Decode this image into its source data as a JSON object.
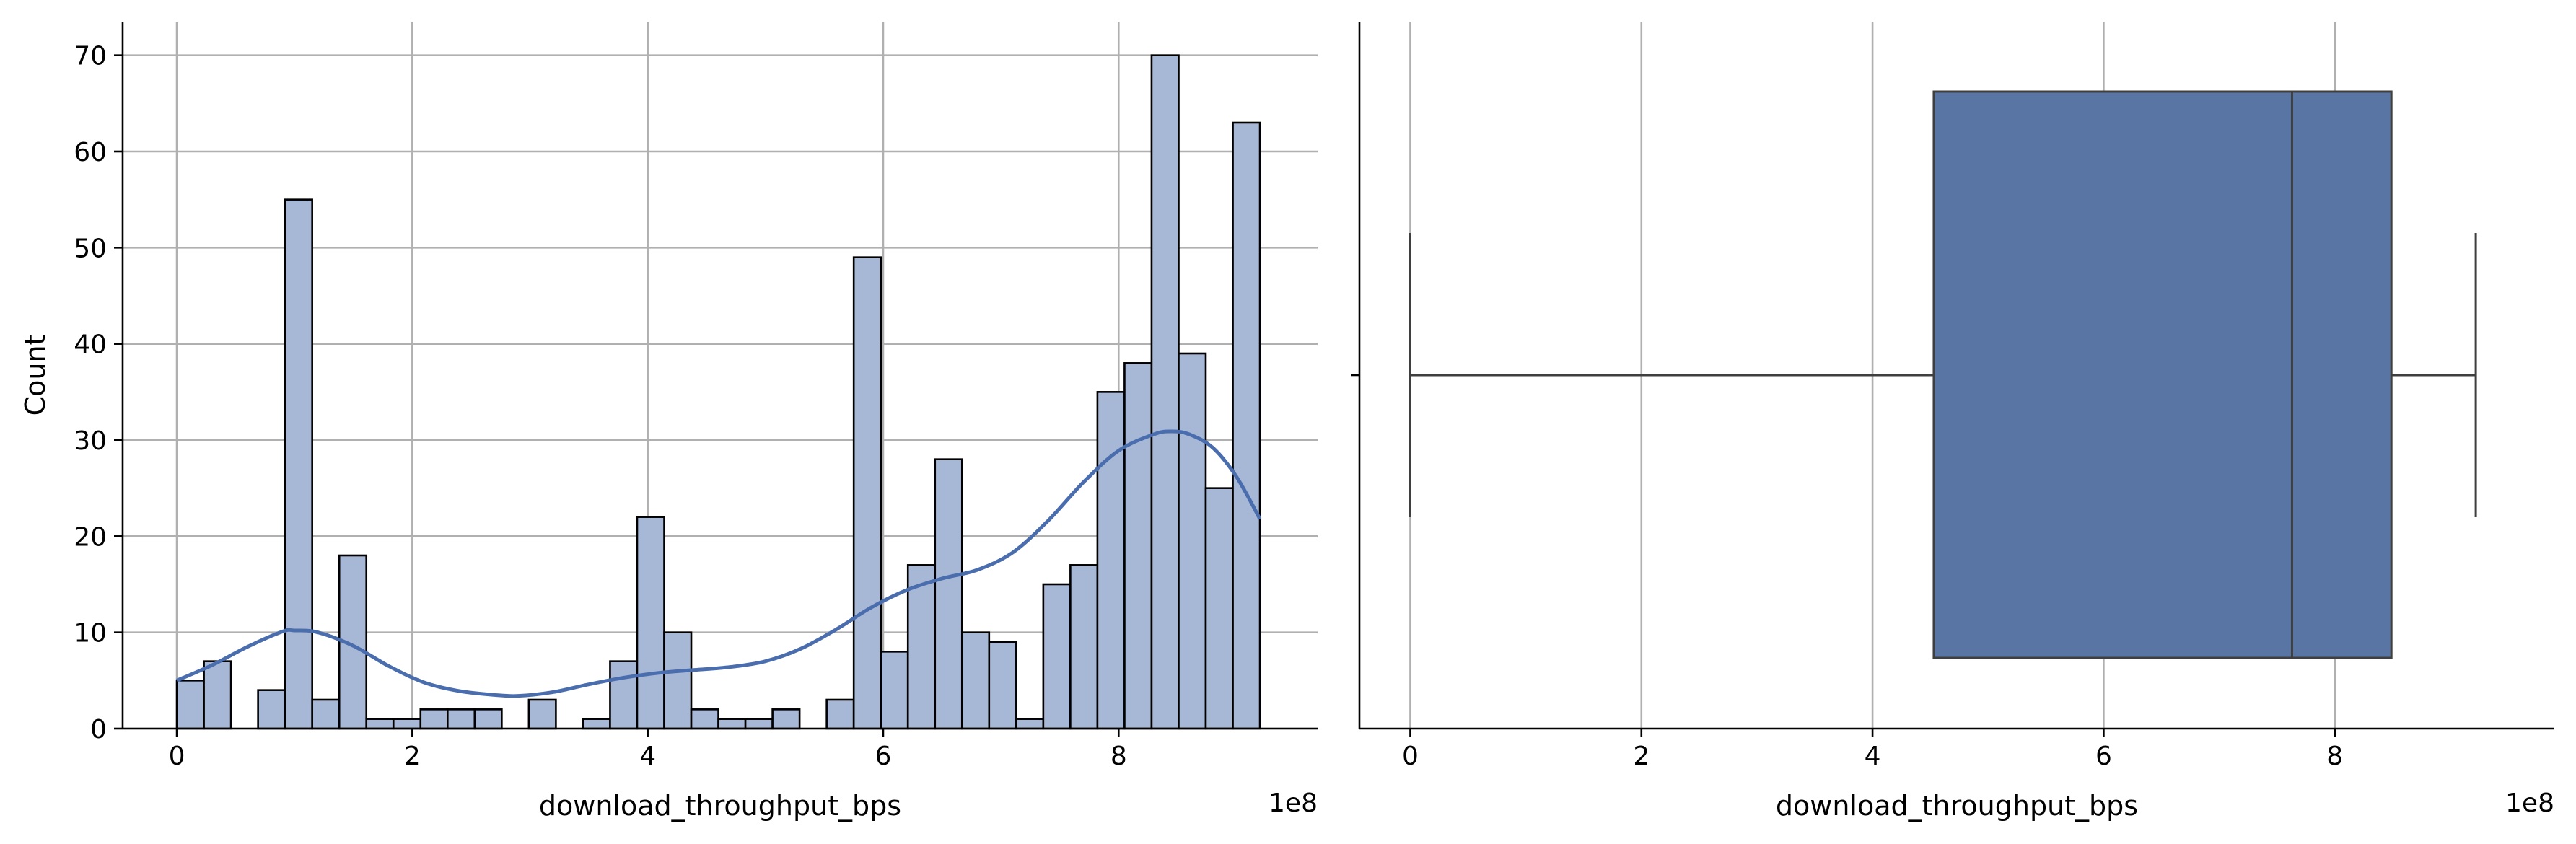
{
  "chart_data": [
    {
      "type": "histogram",
      "xlabel": "download_throughput_bps",
      "ylabel": "Count",
      "x_offset_label": "1e8",
      "xlim": [
        -0.46,
        9.69
      ],
      "ylim": [
        0,
        73.5
      ],
      "xticks": [
        0,
        2,
        4,
        6,
        8
      ],
      "yticks": [
        0,
        10,
        20,
        30,
        40,
        50,
        60,
        70
      ],
      "grid": true,
      "bar_color": "#a7b7d6",
      "bar_edge_color": "#000000",
      "kde_color": "#4a6dae",
      "bins": [
        {
          "x0": 0.0,
          "x1": 0.23,
          "count": 5
        },
        {
          "x0": 0.23,
          "x1": 0.46,
          "count": 7
        },
        {
          "x0": 0.46,
          "x1": 0.69,
          "count": 0
        },
        {
          "x0": 0.69,
          "x1": 0.92,
          "count": 4
        },
        {
          "x0": 0.92,
          "x1": 1.15,
          "count": 55
        },
        {
          "x0": 1.15,
          "x1": 1.38,
          "count": 3
        },
        {
          "x0": 1.38,
          "x1": 1.61,
          "count": 18
        },
        {
          "x0": 1.61,
          "x1": 1.84,
          "count": 1
        },
        {
          "x0": 1.84,
          "x1": 2.07,
          "count": 1
        },
        {
          "x0": 2.07,
          "x1": 2.3,
          "count": 2
        },
        {
          "x0": 2.3,
          "x1": 2.53,
          "count": 2
        },
        {
          "x0": 2.53,
          "x1": 2.76,
          "count": 2
        },
        {
          "x0": 2.76,
          "x1": 2.99,
          "count": 0
        },
        {
          "x0": 2.99,
          "x1": 3.22,
          "count": 3
        },
        {
          "x0": 3.22,
          "x1": 3.45,
          "count": 0
        },
        {
          "x0": 3.45,
          "x1": 3.68,
          "count": 1
        },
        {
          "x0": 3.68,
          "x1": 3.91,
          "count": 7
        },
        {
          "x0": 3.91,
          "x1": 4.14,
          "count": 22
        },
        {
          "x0": 4.14,
          "x1": 4.37,
          "count": 10
        },
        {
          "x0": 4.37,
          "x1": 4.6,
          "count": 2
        },
        {
          "x0": 4.6,
          "x1": 4.83,
          "count": 1
        },
        {
          "x0": 4.83,
          "x1": 5.06,
          "count": 1
        },
        {
          "x0": 5.06,
          "x1": 5.29,
          "count": 2
        },
        {
          "x0": 5.29,
          "x1": 5.52,
          "count": 0
        },
        {
          "x0": 5.52,
          "x1": 5.75,
          "count": 3
        },
        {
          "x0": 5.75,
          "x1": 5.98,
          "count": 49
        },
        {
          "x0": 5.98,
          "x1": 6.21,
          "count": 8
        },
        {
          "x0": 6.21,
          "x1": 6.44,
          "count": 17
        },
        {
          "x0": 6.44,
          "x1": 6.67,
          "count": 28
        },
        {
          "x0": 6.67,
          "x1": 6.9,
          "count": 10
        },
        {
          "x0": 6.9,
          "x1": 7.13,
          "count": 9
        },
        {
          "x0": 7.13,
          "x1": 7.36,
          "count": 1
        },
        {
          "x0": 7.36,
          "x1": 7.59,
          "count": 15
        },
        {
          "x0": 7.59,
          "x1": 7.82,
          "count": 17
        },
        {
          "x0": 7.82,
          "x1": 8.05,
          "count": 35
        },
        {
          "x0": 8.05,
          "x1": 8.28,
          "count": 38
        },
        {
          "x0": 8.28,
          "x1": 8.51,
          "count": 70
        },
        {
          "x0": 8.51,
          "x1": 8.74,
          "count": 39
        },
        {
          "x0": 8.74,
          "x1": 8.97,
          "count": 25
        },
        {
          "x0": 8.97,
          "x1": 9.2,
          "count": 63
        }
      ],
      "kde": {
        "x": [
          0.0,
          0.3,
          0.6,
          0.9,
          1.0,
          1.2,
          1.5,
          1.8,
          2.1,
          2.4,
          2.7,
          2.9,
          3.2,
          3.5,
          3.8,
          4.1,
          4.4,
          4.7,
          5.0,
          5.3,
          5.6,
          5.9,
          6.2,
          6.5,
          6.8,
          7.1,
          7.4,
          7.7,
          8.0,
          8.3,
          8.45,
          8.6,
          8.8,
          9.0,
          9.2
        ],
        "y": [
          5.0,
          6.6,
          8.5,
          10.1,
          10.2,
          10.0,
          8.6,
          6.5,
          4.8,
          3.9,
          3.5,
          3.4,
          3.8,
          4.6,
          5.3,
          5.8,
          6.1,
          6.4,
          7.0,
          8.3,
          10.3,
          12.6,
          14.4,
          15.6,
          16.5,
          18.3,
          21.6,
          25.6,
          28.9,
          30.6,
          30.9,
          30.6,
          29.2,
          26.2,
          21.8
        ]
      }
    },
    {
      "type": "boxplot",
      "xlabel": "download_throughput_bps",
      "x_offset_label": "1e8",
      "xlim": [
        -0.44,
        9.9
      ],
      "xticks": [
        0,
        2,
        4,
        6,
        8
      ],
      "grid": true,
      "box_color": "#5975a4",
      "line_color": "#3f3f3f",
      "whisker_low": 0.0,
      "q1": 4.53,
      "median": 7.63,
      "q3": 8.49,
      "whisker_high": 9.22
    }
  ]
}
